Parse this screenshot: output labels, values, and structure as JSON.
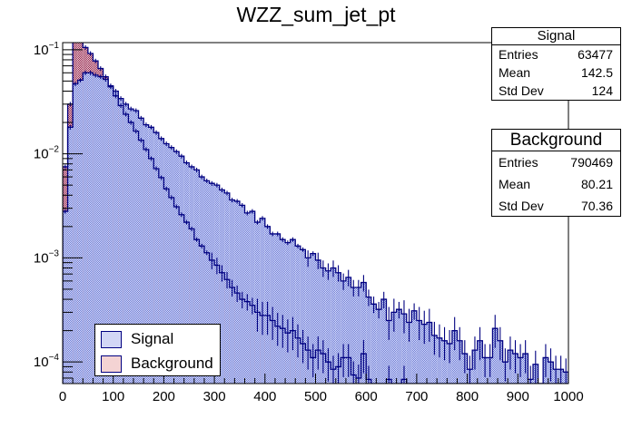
{
  "chart_data": {
    "type": "bar",
    "histogram": true,
    "title": "WZZ_sum_jet_pt",
    "xlabel": "",
    "ylabel": "",
    "xlim": [
      0,
      1000
    ],
    "ylim": [
      6.2e-05,
      0.117
    ],
    "yscale": "log",
    "grid": false,
    "bin_width": 10,
    "x_ticks": [
      0,
      100,
      200,
      300,
      400,
      500,
      600,
      700,
      800,
      900,
      1000
    ],
    "x_tick_labels": [
      "0",
      "100",
      "200",
      "300",
      "400",
      "500",
      "600",
      "700",
      "800",
      "900",
      "1000"
    ],
    "y_ticks": [
      0.1,
      0.01,
      0.001,
      0.0001
    ],
    "y_tick_labels": [
      {
        "base": "10",
        "exp": "−1"
      },
      {
        "base": "10",
        "exp": "−2"
      },
      {
        "base": "10",
        "exp": "−3"
      },
      {
        "base": "10",
        "exp": "−4"
      }
    ],
    "legend": {
      "position": "bottom-left",
      "entries": [
        "Signal",
        "Background"
      ]
    },
    "series": [
      {
        "name": "Background",
        "fill": "#f2c9c9",
        "hatch": "#8b2252",
        "line": "#000080",
        "values": [
          0.0075,
          0.03,
          0.13,
          0.13,
          0.105,
          0.092,
          0.078,
          0.066,
          0.055,
          0.044,
          0.036,
          0.029,
          0.024,
          0.02,
          0.0165,
          0.0135,
          0.011,
          0.009,
          0.0072,
          0.0059,
          0.0046,
          0.0038,
          0.0031,
          0.0026,
          0.0022,
          0.0019,
          0.0015,
          0.0013,
          0.00112,
          0.00095,
          0.00085,
          0.00072,
          0.00062,
          0.00052,
          0.00046,
          0.0004,
          0.00038,
          0.00035,
          0.0003,
          0.00028,
          0.00028,
          0.00025,
          0.00022,
          0.00021,
          0.00019,
          0.0002,
          0.00017,
          0.00015,
          0.00013,
          0.00011,
          0.00013,
          0.00012,
          0.0001,
          8.5e-05,
          9e-05,
          0.00011,
          0.00011,
          7.5e-05,
          7e-05,
          0.00012,
          6.8e-05,
          0,
          0,
          0,
          6.8e-05,
          0,
          0,
          6.8e-05,
          0,
          0,
          0,
          0,
          0,
          0,
          0,
          0,
          0,
          0,
          0,
          0,
          0,
          0,
          0,
          0,
          0,
          0,
          0,
          0,
          0,
          0,
          0,
          0,
          0,
          0,
          0,
          0,
          0,
          0,
          0,
          0
        ]
      },
      {
        "name": "Signal",
        "fill": "#c9cdf2",
        "hatch": "#3a4fc8",
        "line": "#000080",
        "values": [
          0.0028,
          0.018,
          0.047,
          0.051,
          0.06,
          0.06,
          0.057,
          0.055,
          0.052,
          0.045,
          0.04,
          0.034,
          0.03,
          0.027,
          0.026,
          0.022,
          0.019,
          0.018,
          0.016,
          0.014,
          0.0125,
          0.0115,
          0.0105,
          0.0095,
          0.0082,
          0.0075,
          0.007,
          0.006,
          0.0055,
          0.0052,
          0.005,
          0.0045,
          0.0042,
          0.0036,
          0.0035,
          0.0032,
          0.0027,
          0.0028,
          0.0022,
          0.0024,
          0.002,
          0.0017,
          0.0017,
          0.0015,
          0.0014,
          0.0015,
          0.0013,
          0.0012,
          0.001,
          0.0011,
          0.00095,
          0.0008,
          0.00075,
          0.0008,
          0.00072,
          0.0006,
          0.00065,
          0.00052,
          0.00052,
          0.00058,
          0.00042,
          0.00036,
          0.00032,
          0.0004,
          0.00025,
          0.0003,
          0.00032,
          0.00029,
          0.00024,
          0.00031,
          0.00025,
          0.00023,
          0.00024,
          0.00018,
          0.00017,
          0.00016,
          0.00015,
          0.0002,
          0.00016,
          0.00012,
          8.5e-05,
          0.00013,
          0.00016,
          0.00011,
          0.00011,
          0.00021,
          0.00016,
          0.0001,
          0.00013,
          0.00012,
          0.00011,
          0.00012,
          6.8e-05,
          9.5e-05,
          0,
          0.00011,
          0.0001,
          8.5e-05,
          8.5e-05,
          8e-05
        ]
      }
    ]
  },
  "stats": {
    "signal": {
      "title": "Signal",
      "rows": [
        {
          "label": "Entries",
          "value": "63477"
        },
        {
          "label": "Mean",
          "value": "142.5"
        },
        {
          "label": "Std Dev",
          "value": "124"
        }
      ]
    },
    "background": {
      "title": "Background",
      "rows": [
        {
          "label": "Entries",
          "value": "790469"
        },
        {
          "label": "Mean",
          "value": "80.21"
        },
        {
          "label": "Std Dev",
          "value": "70.36"
        }
      ]
    }
  },
  "legend": {
    "items": [
      {
        "label": "Signal"
      },
      {
        "label": "Background"
      }
    ]
  }
}
